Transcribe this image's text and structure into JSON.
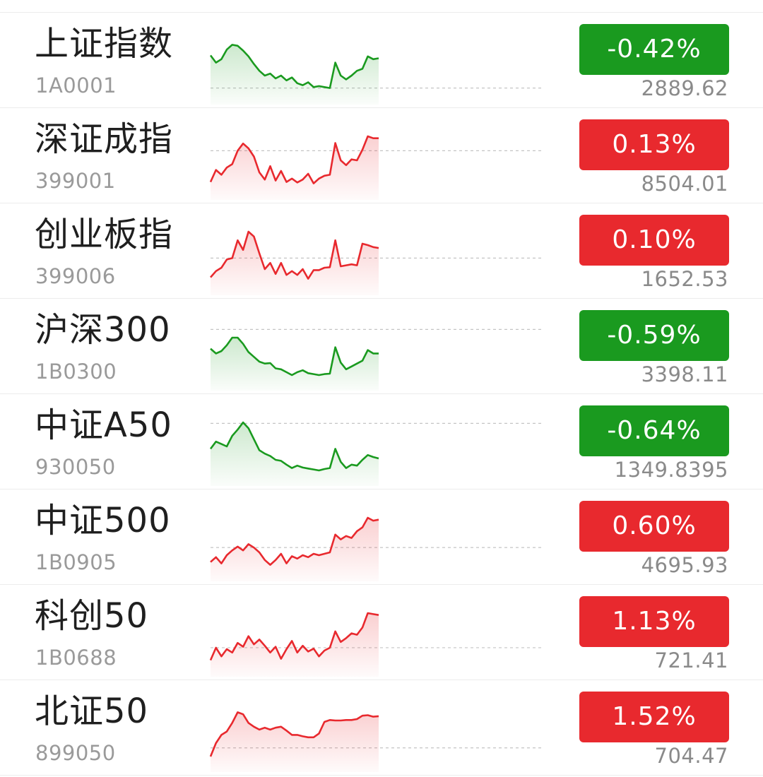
{
  "theme": {
    "up_color": "#e8292e",
    "down_color": "#1a9a1f"
  },
  "indices": [
    {
      "name": "上证指数",
      "code": "1A0001",
      "change": "-0.42%",
      "price": "2889.62",
      "direction": "down",
      "trend": [
        0.7,
        0.55,
        0.62,
        0.82,
        0.92,
        0.9,
        0.8,
        0.68,
        0.52,
        0.38,
        0.28,
        0.32,
        0.22,
        0.28,
        0.18,
        0.24,
        0.12,
        0.08,
        0.14,
        0.04,
        0.06,
        0.04,
        0.02,
        0.55,
        0.28,
        0.2,
        0.28,
        0.38,
        0.42,
        0.68,
        0.62,
        0.64
      ],
      "reference": 0.02
    },
    {
      "name": "深证成指",
      "code": "399001",
      "change": "0.13%",
      "price": "8504.01",
      "direction": "up",
      "trend": [
        0.05,
        0.3,
        0.2,
        0.35,
        0.42,
        0.7,
        0.85,
        0.75,
        0.58,
        0.25,
        0.1,
        0.38,
        0.08,
        0.28,
        0.05,
        0.12,
        0.04,
        0.1,
        0.22,
        0.02,
        0.12,
        0.18,
        0.2,
        0.86,
        0.5,
        0.4,
        0.52,
        0.5,
        0.72,
        1.0,
        0.96,
        0.96
      ],
      "reference": 0.7
    },
    {
      "name": "创业板指",
      "code": "399006",
      "change": "0.10%",
      "price": "1652.53",
      "direction": "up",
      "trend": [
        0.05,
        0.18,
        0.25,
        0.42,
        0.45,
        0.82,
        0.62,
        1.0,
        0.9,
        0.55,
        0.22,
        0.35,
        0.12,
        0.35,
        0.1,
        0.18,
        0.1,
        0.22,
        0.02,
        0.2,
        0.2,
        0.25,
        0.26,
        0.82,
        0.28,
        0.3,
        0.32,
        0.3,
        0.75,
        0.72,
        0.68,
        0.66
      ],
      "reference": 0.45
    },
    {
      "name": "沪深300",
      "code": "1B0300",
      "change": "-0.59%",
      "price": "3398.11",
      "direction": "down",
      "trend": [
        0.55,
        0.45,
        0.5,
        0.62,
        0.78,
        0.78,
        0.65,
        0.48,
        0.38,
        0.28,
        0.24,
        0.25,
        0.14,
        0.12,
        0.06,
        0.0,
        0.06,
        0.1,
        0.04,
        0.02,
        0.0,
        0.02,
        0.03,
        0.58,
        0.26,
        0.12,
        0.18,
        0.24,
        0.3,
        0.52,
        0.45,
        0.45
      ],
      "reference": 0.95
    },
    {
      "name": "中证A50",
      "code": "930050",
      "change": "-0.64%",
      "price": "1349.8395",
      "direction": "down",
      "trend": [
        0.45,
        0.6,
        0.55,
        0.5,
        0.72,
        0.85,
        1.0,
        0.88,
        0.65,
        0.42,
        0.35,
        0.3,
        0.22,
        0.2,
        0.12,
        0.05,
        0.1,
        0.06,
        0.04,
        0.02,
        0.0,
        0.03,
        0.05,
        0.45,
        0.18,
        0.05,
        0.12,
        0.1,
        0.22,
        0.32,
        0.28,
        0.25
      ],
      "reference": 0.98
    },
    {
      "name": "中证500",
      "code": "1B0905",
      "change": "0.60%",
      "price": "4695.93",
      "direction": "up",
      "trend": [
        0.08,
        0.18,
        0.05,
        0.22,
        0.32,
        0.4,
        0.32,
        0.45,
        0.38,
        0.28,
        0.12,
        0.02,
        0.12,
        0.25,
        0.05,
        0.2,
        0.15,
        0.22,
        0.18,
        0.25,
        0.22,
        0.25,
        0.28,
        0.65,
        0.55,
        0.62,
        0.58,
        0.72,
        0.8,
        1.0,
        0.94,
        0.96
      ],
      "reference": 0.38
    },
    {
      "name": "科创50",
      "code": "1B0688",
      "change": "1.13%",
      "price": "721.41",
      "direction": "up",
      "trend": [
        0.02,
        0.28,
        0.1,
        0.25,
        0.18,
        0.38,
        0.3,
        0.52,
        0.35,
        0.45,
        0.32,
        0.18,
        0.3,
        0.05,
        0.25,
        0.42,
        0.18,
        0.32,
        0.2,
        0.26,
        0.1,
        0.22,
        0.28,
        0.62,
        0.4,
        0.48,
        0.58,
        0.55,
        0.7,
        1.0,
        0.98,
        0.96
      ],
      "reference": 0.28
    },
    {
      "name": "北证50",
      "code": "899050",
      "change": "1.52%",
      "price": "704.47",
      "direction": "up",
      "trend": [
        0.0,
        0.28,
        0.45,
        0.52,
        0.7,
        0.92,
        0.88,
        0.7,
        0.62,
        0.56,
        0.6,
        0.56,
        0.6,
        0.62,
        0.54,
        0.45,
        0.45,
        0.42,
        0.4,
        0.4,
        0.48,
        0.72,
        0.76,
        0.75,
        0.75,
        0.76,
        0.76,
        0.78,
        0.85,
        0.86,
        0.83,
        0.84
      ],
      "reference": 0.18
    }
  ]
}
